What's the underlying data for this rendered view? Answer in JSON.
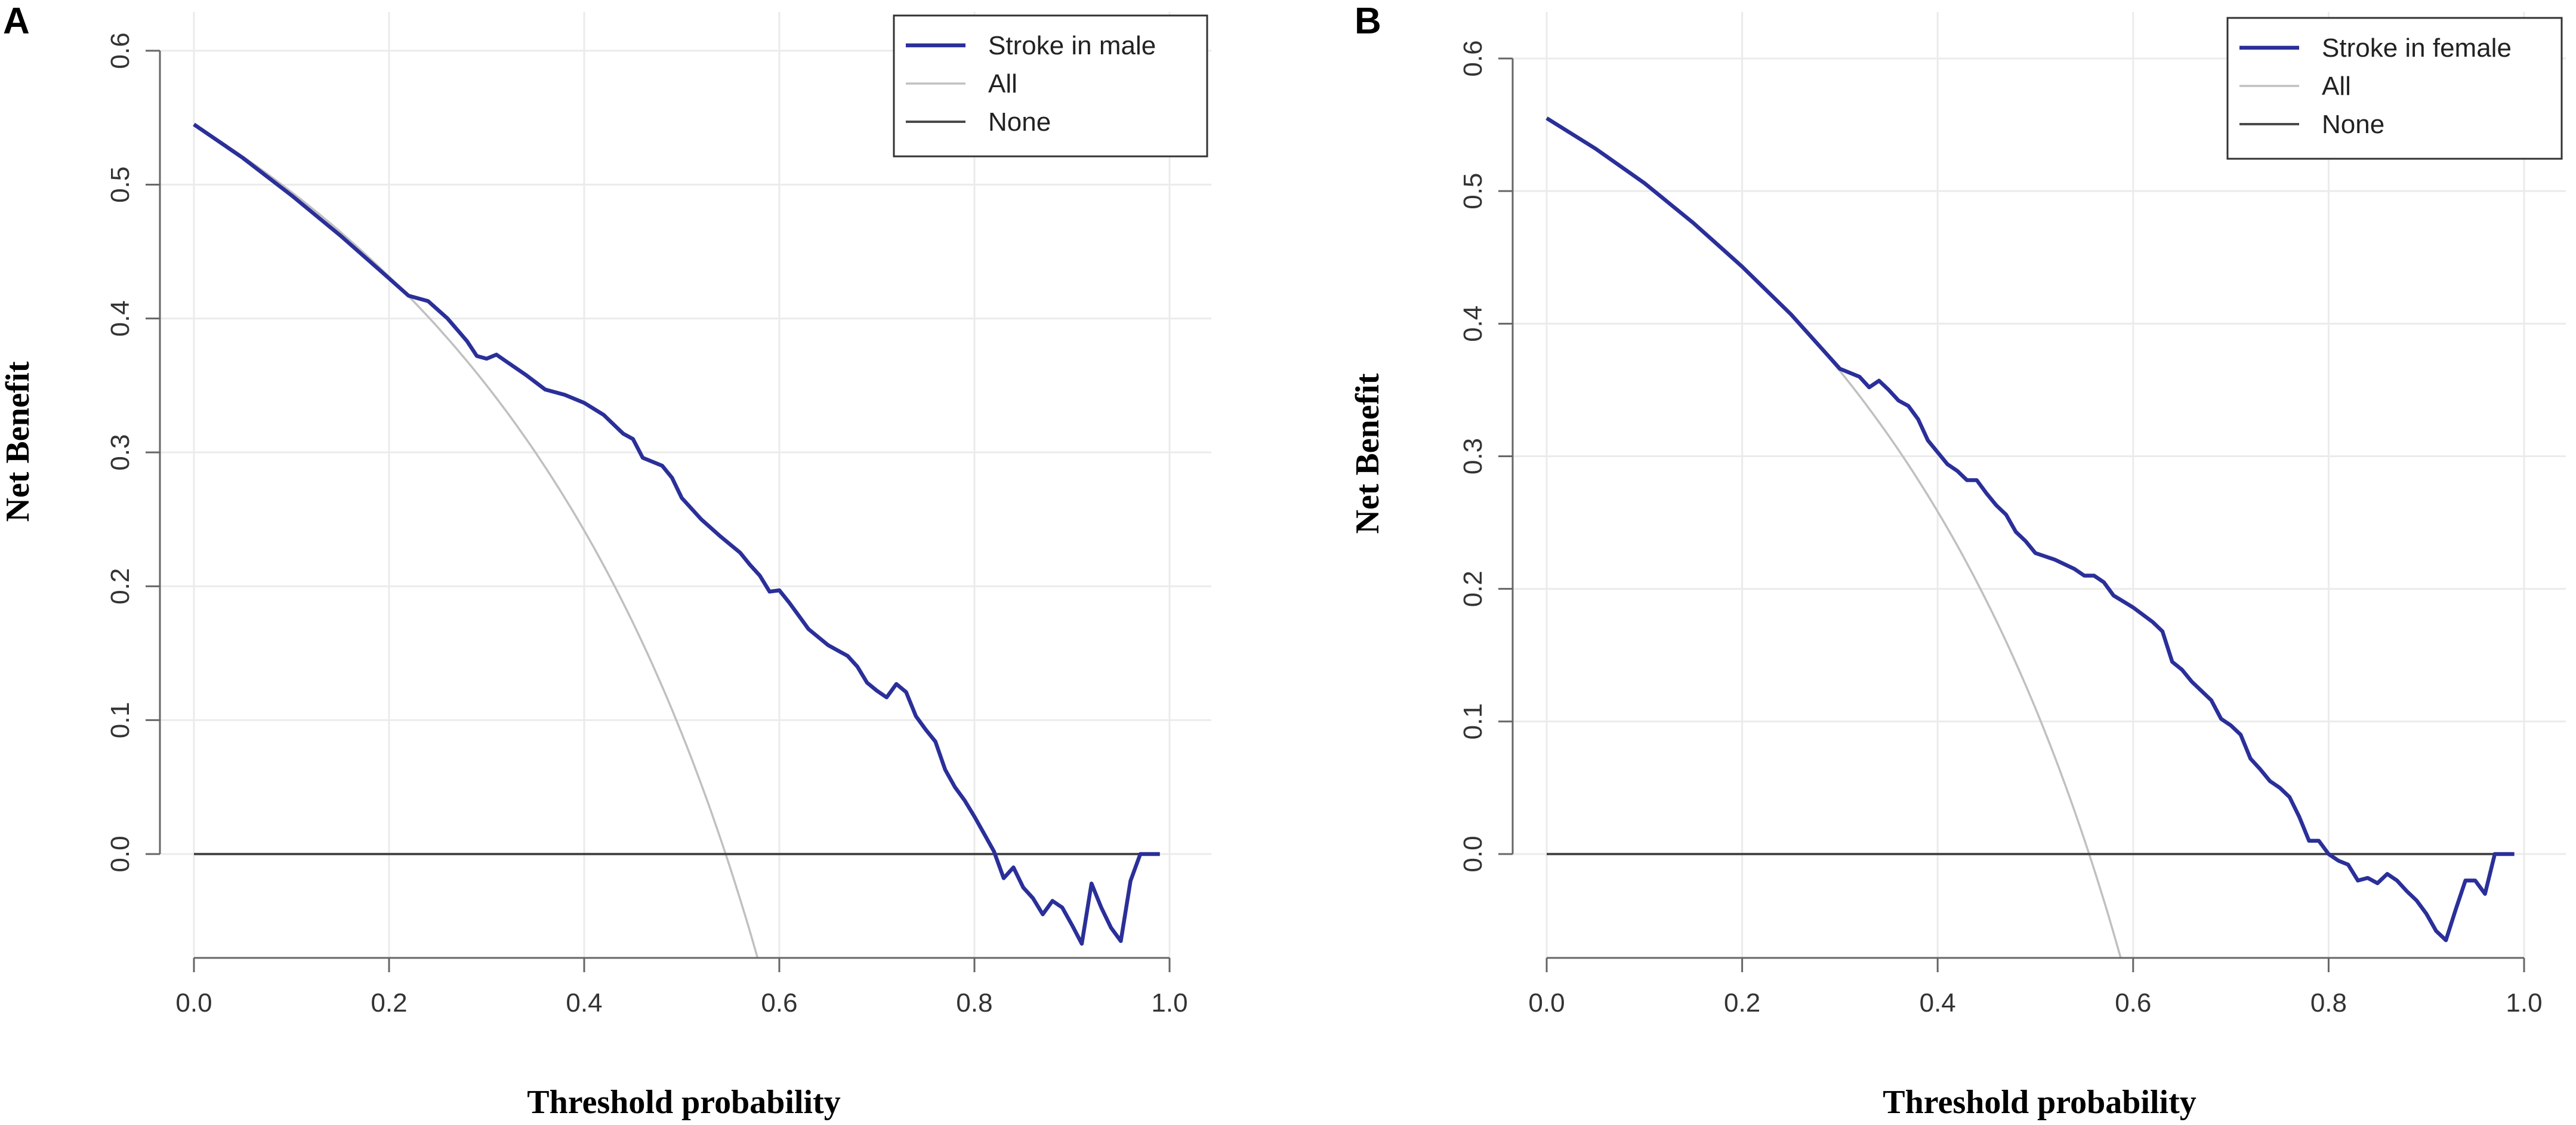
{
  "chart_data": [
    {
      "panel": "A",
      "type": "line",
      "xlabel": "Threshold probability",
      "ylabel": "Net Benefit",
      "xlim": [
        0.0,
        1.0
      ],
      "ylim": [
        -0.075,
        0.61
      ],
      "xticks": [
        "0.0",
        "0.2",
        "0.4",
        "0.6",
        "0.8",
        "1.0"
      ],
      "yticks": [
        "0.0",
        "0.1",
        "0.2",
        "0.3",
        "0.4",
        "0.5",
        "0.6"
      ],
      "grid": true,
      "legend_position": "top-right",
      "series": [
        {
          "name": "Stroke in male",
          "color": "#2a2f99",
          "points": [
            [
              0,
              0.545
            ],
            [
              0.05,
              0.52
            ],
            [
              0.1,
              0.492
            ],
            [
              0.15,
              0.462
            ],
            [
              0.2,
              0.43
            ],
            [
              0.22,
              0.417
            ],
            [
              0.24,
              0.413
            ],
            [
              0.26,
              0.4
            ],
            [
              0.28,
              0.383
            ],
            [
              0.29,
              0.372
            ],
            [
              0.3,
              0.37
            ],
            [
              0.31,
              0.373
            ],
            [
              0.32,
              0.368
            ],
            [
              0.34,
              0.358
            ],
            [
              0.36,
              0.347
            ],
            [
              0.38,
              0.343
            ],
            [
              0.4,
              0.337
            ],
            [
              0.42,
              0.328
            ],
            [
              0.44,
              0.314
            ],
            [
              0.45,
              0.31
            ],
            [
              0.46,
              0.296
            ],
            [
              0.48,
              0.29
            ],
            [
              0.49,
              0.281
            ],
            [
              0.5,
              0.266
            ],
            [
              0.52,
              0.25
            ],
            [
              0.54,
              0.237
            ],
            [
              0.56,
              0.225
            ],
            [
              0.57,
              0.216
            ],
            [
              0.58,
              0.208
            ],
            [
              0.59,
              0.196
            ],
            [
              0.6,
              0.197
            ],
            [
              0.61,
              0.188
            ],
            [
              0.62,
              0.178
            ],
            [
              0.63,
              0.168
            ],
            [
              0.65,
              0.156
            ],
            [
              0.66,
              0.152
            ],
            [
              0.67,
              0.148
            ],
            [
              0.68,
              0.14
            ],
            [
              0.69,
              0.128
            ],
            [
              0.7,
              0.122
            ],
            [
              0.71,
              0.117
            ],
            [
              0.72,
              0.127
            ],
            [
              0.73,
              0.121
            ],
            [
              0.74,
              0.103
            ],
            [
              0.75,
              0.093
            ],
            [
              0.76,
              0.084
            ],
            [
              0.77,
              0.063
            ],
            [
              0.78,
              0.05
            ],
            [
              0.79,
              0.04
            ],
            [
              0.8,
              0.028
            ],
            [
              0.81,
              0.015
            ],
            [
              0.82,
              0.002
            ],
            [
              0.83,
              -0.018
            ],
            [
              0.84,
              -0.01
            ],
            [
              0.85,
              -0.025
            ],
            [
              0.86,
              -0.033
            ],
            [
              0.87,
              -0.045
            ],
            [
              0.88,
              -0.035
            ],
            [
              0.89,
              -0.04
            ],
            [
              0.9,
              -0.053
            ],
            [
              0.91,
              -0.067
            ],
            [
              0.92,
              -0.022
            ],
            [
              0.93,
              -0.04
            ],
            [
              0.94,
              -0.055
            ],
            [
              0.95,
              -0.065
            ],
            [
              0.96,
              -0.02
            ],
            [
              0.97,
              0
            ],
            [
              0.99,
              0
            ]
          ]
        },
        {
          "name": "All",
          "color": "#c0c0c0",
          "prevalence": 0.545
        },
        {
          "name": "None",
          "color": "#4a4a4a",
          "points": [
            [
              0,
              0
            ],
            [
              0.99,
              0
            ]
          ]
        }
      ]
    },
    {
      "panel": "B",
      "type": "line",
      "xlabel": "Threshold probability",
      "ylabel": "Net Benefit",
      "xlim": [
        0.0,
        1.0
      ],
      "ylim": [
        -0.075,
        0.61
      ],
      "xticks": [
        "0.0",
        "0.2",
        "0.4",
        "0.6",
        "0.8",
        "1.0"
      ],
      "yticks": [
        "0.0",
        "0.1",
        "0.2",
        "0.3",
        "0.4",
        "0.5",
        "0.6"
      ],
      "grid": true,
      "legend_position": "top-right",
      "series": [
        {
          "name": "Stroke in female",
          "color": "#2a2f99",
          "points": [
            [
              0,
              0.555
            ],
            [
              0.05,
              0.532
            ],
            [
              0.1,
              0.506
            ],
            [
              0.15,
              0.476
            ],
            [
              0.2,
              0.443
            ],
            [
              0.25,
              0.407
            ],
            [
              0.3,
              0.366
            ],
            [
              0.32,
              0.36
            ],
            [
              0.33,
              0.352
            ],
            [
              0.34,
              0.357
            ],
            [
              0.35,
              0.35
            ],
            [
              0.36,
              0.342
            ],
            [
              0.37,
              0.338
            ],
            [
              0.38,
              0.328
            ],
            [
              0.39,
              0.312
            ],
            [
              0.4,
              0.303
            ],
            [
              0.41,
              0.294
            ],
            [
              0.42,
              0.289
            ],
            [
              0.43,
              0.282
            ],
            [
              0.44,
              0.282
            ],
            [
              0.45,
              0.272
            ],
            [
              0.46,
              0.263
            ],
            [
              0.47,
              0.256
            ],
            [
              0.48,
              0.243
            ],
            [
              0.49,
              0.236
            ],
            [
              0.5,
              0.227
            ],
            [
              0.52,
              0.222
            ],
            [
              0.54,
              0.215
            ],
            [
              0.55,
              0.21
            ],
            [
              0.56,
              0.21
            ],
            [
              0.57,
              0.205
            ],
            [
              0.58,
              0.195
            ],
            [
              0.6,
              0.186
            ],
            [
              0.62,
              0.175
            ],
            [
              0.63,
              0.168
            ],
            [
              0.64,
              0.145
            ],
            [
              0.65,
              0.139
            ],
            [
              0.66,
              0.13
            ],
            [
              0.68,
              0.116
            ],
            [
              0.69,
              0.102
            ],
            [
              0.7,
              0.097
            ],
            [
              0.71,
              0.09
            ],
            [
              0.72,
              0.072
            ],
            [
              0.73,
              0.064
            ],
            [
              0.74,
              0.055
            ],
            [
              0.75,
              0.05
            ],
            [
              0.76,
              0.043
            ],
            [
              0.77,
              0.028
            ],
            [
              0.78,
              0.01
            ],
            [
              0.79,
              0.01
            ],
            [
              0.8,
              0
            ],
            [
              0.81,
              -0.005
            ],
            [
              0.82,
              -0.008
            ],
            [
              0.83,
              -0.02
            ],
            [
              0.84,
              -0.018
            ],
            [
              0.85,
              -0.022
            ],
            [
              0.86,
              -0.015
            ],
            [
              0.87,
              -0.02
            ],
            [
              0.88,
              -0.028
            ],
            [
              0.89,
              -0.035
            ],
            [
              0.9,
              -0.045
            ],
            [
              0.91,
              -0.058
            ],
            [
              0.92,
              -0.065
            ],
            [
              0.93,
              -0.042
            ],
            [
              0.94,
              -0.02
            ],
            [
              0.95,
              -0.02
            ],
            [
              0.96,
              -0.03
            ],
            [
              0.97,
              0
            ],
            [
              0.99,
              0
            ]
          ]
        },
        {
          "name": "All",
          "color": "#c0c0c0",
          "prevalence": 0.555
        },
        {
          "name": "None",
          "color": "#4a4a4a",
          "points": [
            [
              0,
              0
            ],
            [
              0.99,
              0
            ]
          ]
        }
      ]
    }
  ]
}
